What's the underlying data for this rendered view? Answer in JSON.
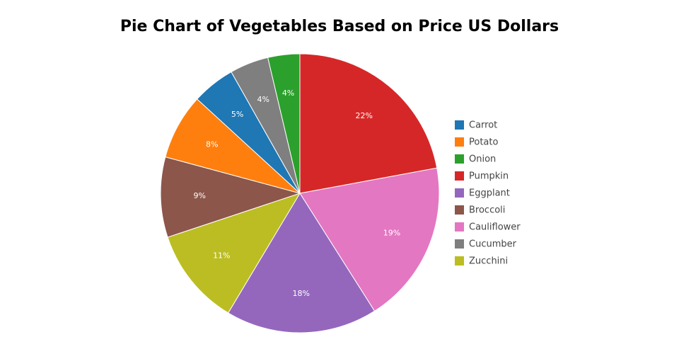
{
  "chart_data": {
    "type": "pie",
    "title": "Pie Chart of Vegetables Based on Price US Dollars",
    "categories": [
      "Carrot",
      "Potato",
      "Onion",
      "Pumpkin",
      "Eggplant",
      "Broccoli",
      "Cauliflower",
      "Cucumber",
      "Zucchini"
    ],
    "values": [
      5.0,
      7.6,
      3.7,
      22.1,
      17.6,
      9.3,
      18.9,
      4.5,
      11.3
    ],
    "value_labels": [
      "5%",
      "8%",
      "4%",
      "22%",
      "18%",
      "9%",
      "19%",
      "4%",
      "11%"
    ],
    "colors": [
      "#1f77b4",
      "#ff7f0e",
      "#2ca02c",
      "#d62728",
      "#9467bd",
      "#8c564b",
      "#e377c2",
      "#7f7f7f",
      "#bcbd22"
    ],
    "sort": true,
    "direction": "clockwise",
    "legend": "right"
  }
}
